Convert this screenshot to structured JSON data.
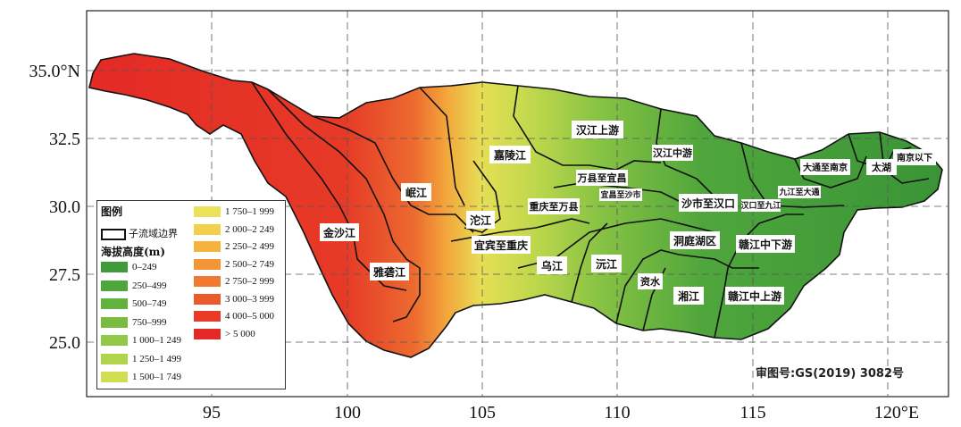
{
  "axes": {
    "x_ticks": [
      "95",
      "100",
      "105",
      "110",
      "115",
      "120°E"
    ],
    "y_ticks": [
      "35.0°N",
      "32.5",
      "30.0",
      "27.5",
      "25.0"
    ]
  },
  "basins": [
    {
      "name": "金沙江",
      "label": "金沙江"
    },
    {
      "name": "雅砻江",
      "label": "雅砻江"
    },
    {
      "name": "岷江",
      "label": "岷江"
    },
    {
      "name": "嘉陵江",
      "label": "嘉陵江"
    },
    {
      "name": "沱江",
      "label": "沱江"
    },
    {
      "name": "宜宾至重庆",
      "label": "宜宾至重庆"
    },
    {
      "name": "重庆至万县",
      "label": "重庆至万县"
    },
    {
      "name": "万县至宜昌",
      "label": "万县至宜昌"
    },
    {
      "name": "宜昌至沙市",
      "label": "宜昌至沙市"
    },
    {
      "name": "汉江上游",
      "label": "汉江上游"
    },
    {
      "name": "汉江中游",
      "label": "汉江中游"
    },
    {
      "name": "沙市至汉口",
      "label": "沙市至汉口"
    },
    {
      "name": "汉口至九江",
      "label": "汉口至九江"
    },
    {
      "name": "九江至大通",
      "label": "九江至大通"
    },
    {
      "name": "大通至南京",
      "label": "大通至南京"
    },
    {
      "name": "太湖",
      "label": "太湖"
    },
    {
      "name": "南京以下",
      "label": "南京以下"
    },
    {
      "name": "乌江",
      "label": "乌江"
    },
    {
      "name": "沅江",
      "label": "沅江"
    },
    {
      "name": "资水",
      "label": "资水"
    },
    {
      "name": "洞庭湖区",
      "label": "洞庭湖区"
    },
    {
      "name": "湘江",
      "label": "湘江"
    },
    {
      "name": "赣江中下游",
      "label": "赣江中下游"
    },
    {
      "name": "赣江中上游",
      "label": "赣江中上游"
    }
  ],
  "legend": {
    "title": "图例",
    "boundary_label": "子流域边界",
    "elevation_title": "海拔高度(m)",
    "classes": [
      {
        "label": "0–249",
        "color": "#3f9a3a"
      },
      {
        "label": "250–499",
        "color": "#4ea63c"
      },
      {
        "label": "500–749",
        "color": "#62b23f"
      },
      {
        "label": "750–999",
        "color": "#78bd42"
      },
      {
        "label": "1 000–1 249",
        "color": "#92c946"
      },
      {
        "label": "1 250–1 499",
        "color": "#b0d54b"
      },
      {
        "label": "1 500–1 749",
        "color": "#d0df52"
      },
      {
        "label": "1 750–1 999",
        "color": "#ece15a"
      },
      {
        "label": "2 000–2 249",
        "color": "#f3cf4a"
      },
      {
        "label": "2 250–2 499",
        "color": "#f5b23e"
      },
      {
        "label": "2 500–2 749",
        "color": "#f39536"
      },
      {
        "label": "2 750–2 999",
        "color": "#f07a31"
      },
      {
        "label": "3 000–3 999",
        "color": "#ec5a2c"
      },
      {
        "label": "4 000–5 000",
        "color": "#e83c28"
      },
      {
        "label": "> 5 000",
        "color": "#e42a26"
      }
    ]
  },
  "map_approval_number": "审图号:GS(2019) 3082号"
}
